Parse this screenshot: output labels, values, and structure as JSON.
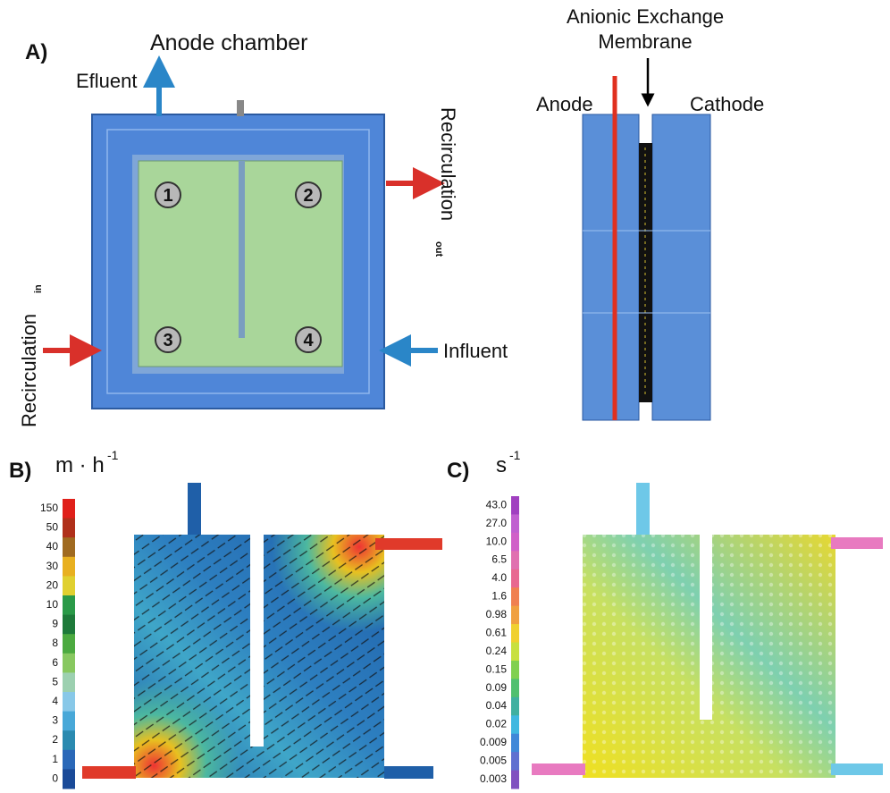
{
  "panel_a": {
    "label": "A)",
    "title": "Anode chamber",
    "efluent": "Efluent",
    "recirculation_out": {
      "text": "Recirculation",
      "sub": "out"
    },
    "recirculation_in": {
      "text": "Recirculation",
      "sub": "in"
    },
    "influent": "Influent",
    "points": [
      "1",
      "2",
      "3",
      "4"
    ],
    "membrane": [
      "Anionic Exchange",
      "Membrane"
    ],
    "anode": "Anode",
    "cathode": "Cathode"
  },
  "panel_b": {
    "label": "B)",
    "unit": "m · h",
    "unit_exp": "-1",
    "scale": [
      "150",
      "50",
      "40",
      "30",
      "20",
      "10",
      "9",
      "8",
      "6",
      "5",
      "4",
      "3",
      "2",
      "1",
      "0"
    ]
  },
  "panel_c": {
    "label": "C)",
    "unit": "s",
    "unit_exp": "-1",
    "scale": [
      "43.0",
      "27.0",
      "10.0",
      "6.5",
      "4.0",
      "1.6",
      "0.98",
      "0.61",
      "0.24",
      "0.15",
      "0.09",
      "0.04",
      "0.02",
      "0.009",
      "0.005",
      "0.003"
    ]
  }
}
